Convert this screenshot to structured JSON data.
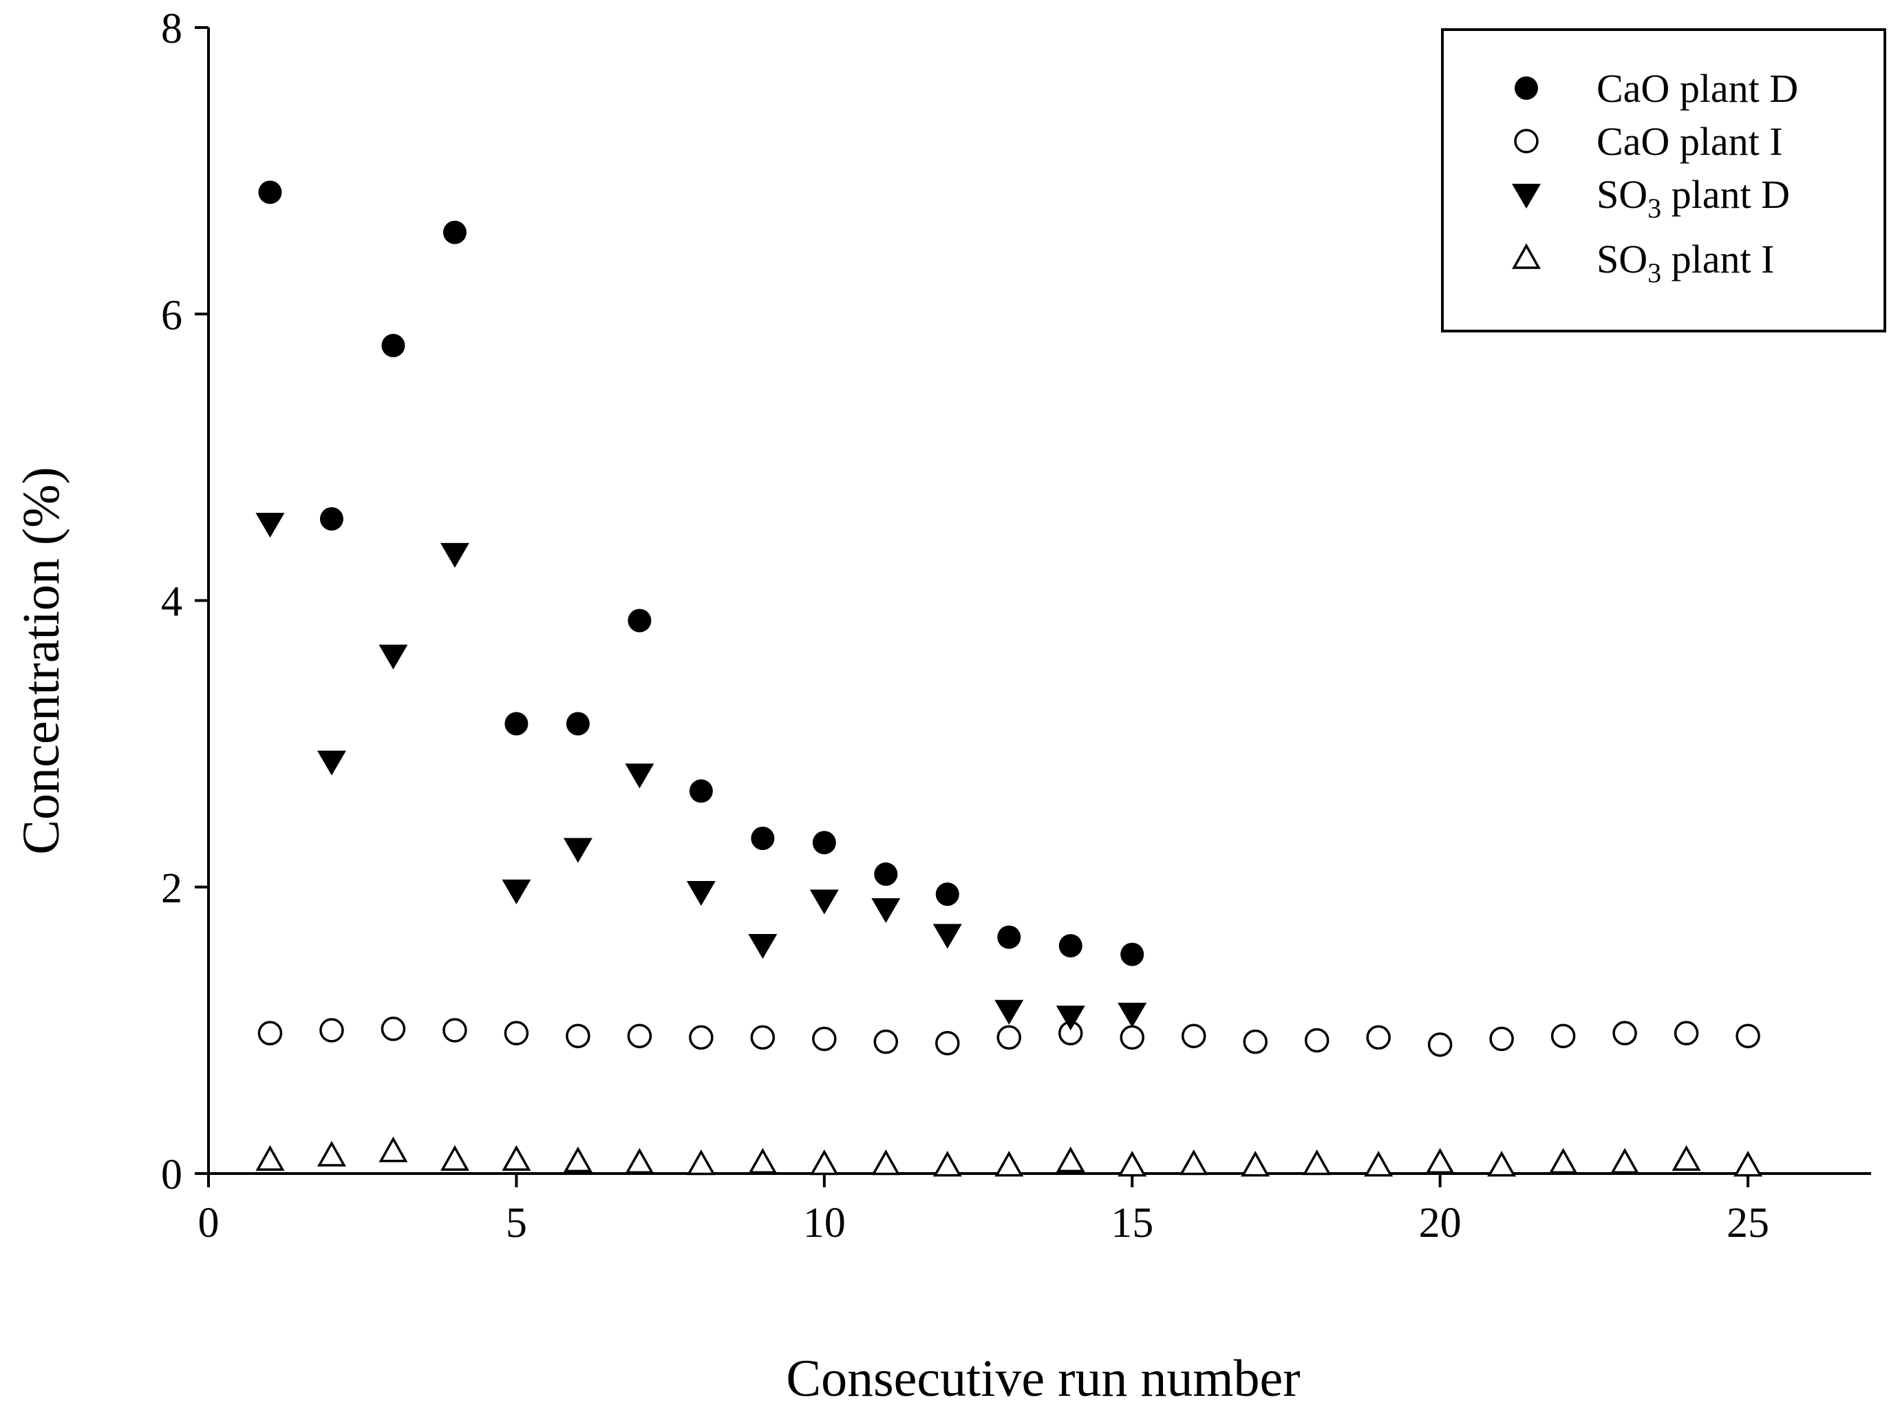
{
  "chart_data": {
    "type": "scatter",
    "title": "",
    "xlabel": "Consecutive run number",
    "ylabel": "Concentration (%)",
    "xlim": [
      0,
      27
    ],
    "ylim": [
      0,
      8
    ],
    "xticks": [
      0,
      5,
      10,
      15,
      20,
      25
    ],
    "yticks": [
      0,
      2,
      4,
      6,
      8
    ],
    "grid": false,
    "legend_position": "top-right",
    "series": [
      {
        "name": "CaO plant D",
        "label_main": "CaO plant D",
        "marker": "filled-circle",
        "x": [
          1,
          2,
          3,
          4,
          5,
          6,
          7,
          8,
          9,
          10,
          11,
          12,
          13,
          14,
          15
        ],
        "y": [
          6.85,
          4.57,
          5.78,
          6.57,
          3.14,
          3.14,
          3.86,
          2.67,
          2.34,
          2.31,
          2.09,
          1.95,
          1.65,
          1.59,
          1.53
        ]
      },
      {
        "name": "CaO plant I",
        "label_main": "CaO plant I",
        "marker": "open-circle",
        "x": [
          1,
          2,
          3,
          4,
          5,
          6,
          7,
          8,
          9,
          10,
          11,
          12,
          13,
          14,
          15,
          16,
          17,
          18,
          19,
          20,
          21,
          22,
          23,
          24,
          25
        ],
        "y": [
          0.98,
          1.0,
          1.01,
          1.0,
          0.98,
          0.96,
          0.96,
          0.95,
          0.95,
          0.94,
          0.92,
          0.91,
          0.95,
          0.98,
          0.95,
          0.96,
          0.92,
          0.93,
          0.95,
          0.9,
          0.94,
          0.96,
          0.98,
          0.98,
          0.96
        ]
      },
      {
        "name": "SO3 plant D",
        "label_main": "SO",
        "label_sub": "3",
        "label_rest": " plant D",
        "marker": "filled-triangle-down",
        "x": [
          1,
          2,
          3,
          4,
          5,
          6,
          7,
          8,
          9,
          10,
          11,
          12,
          13,
          14,
          15
        ],
        "y": [
          4.54,
          2.88,
          3.62,
          4.33,
          1.98,
          2.27,
          2.79,
          1.97,
          1.6,
          1.91,
          1.85,
          1.67,
          1.14,
          1.1,
          1.12
        ]
      },
      {
        "name": "SO3 plant I",
        "label_main": "SO",
        "label_sub": "3",
        "label_rest": " plant I",
        "marker": "open-triangle-up",
        "x": [
          1,
          2,
          3,
          4,
          5,
          6,
          7,
          8,
          9,
          10,
          11,
          12,
          13,
          14,
          15,
          16,
          17,
          18,
          19,
          20,
          21,
          22,
          23,
          24,
          25
        ],
        "y": [
          0.09,
          0.12,
          0.15,
          0.09,
          0.09,
          0.08,
          0.07,
          0.06,
          0.07,
          0.06,
          0.06,
          0.05,
          0.05,
          0.08,
          0.05,
          0.06,
          0.05,
          0.06,
          0.05,
          0.07,
          0.05,
          0.07,
          0.07,
          0.09,
          0.05
        ]
      }
    ]
  },
  "colors": {
    "ink": "#000000",
    "background": "#ffffff"
  }
}
